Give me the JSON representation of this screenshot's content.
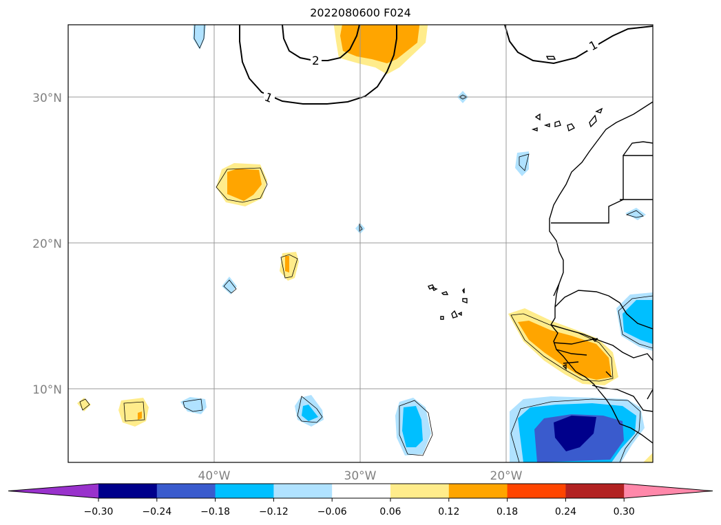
{
  "title": "2022080600 F024",
  "map": {
    "lat_labels": [
      "30°N",
      "20°N",
      "10°N"
    ],
    "lon_labels": [
      "40°W",
      "30°W",
      "20°W"
    ],
    "contour_labels": [
      "2",
      "1",
      "1"
    ]
  },
  "colorbar": {
    "tick_labels": [
      "−0.30",
      "−0.24",
      "−0.18",
      "−0.12",
      "−0.06",
      "0.06",
      "0.12",
      "0.18",
      "0.24",
      "0.30"
    ],
    "colors": [
      "#9932cc",
      "#00008b",
      "#3a5bcd",
      "#00bfff",
      "#b0e2ff",
      "#ffffff",
      "#ffec8b",
      "#ffa500",
      "#ff4500",
      "#b22222",
      "#ff88aa"
    ]
  }
}
